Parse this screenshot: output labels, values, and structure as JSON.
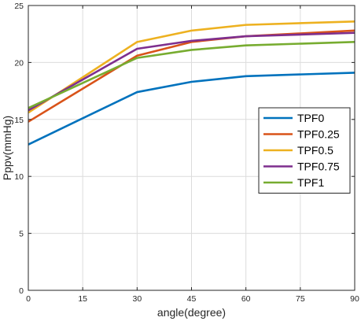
{
  "chart_data": {
    "type": "line",
    "title": "",
    "xlabel": "angle(degree)",
    "ylabel": "Pppv(mmHg)",
    "xlim": [
      0,
      90
    ],
    "ylim": [
      0,
      25
    ],
    "xticks": [
      0,
      15,
      30,
      45,
      60,
      75,
      90
    ],
    "yticks": [
      0,
      5,
      10,
      15,
      20,
      25
    ],
    "grid": true,
    "legend_position": "center-right",
    "x": [
      0,
      30,
      45,
      60,
      90
    ],
    "series": [
      {
        "name": "TPF0",
        "color": "#0072BD",
        "values": [
          12.8,
          17.4,
          18.3,
          18.8,
          19.1
        ]
      },
      {
        "name": "TPF0.25",
        "color": "#D95319",
        "values": [
          14.8,
          20.6,
          21.8,
          22.3,
          22.8
        ]
      },
      {
        "name": "TPF0.5",
        "color": "#EDB120",
        "values": [
          15.6,
          21.8,
          22.8,
          23.3,
          23.6
        ]
      },
      {
        "name": "TPF0.75",
        "color": "#7E2F8E",
        "values": [
          15.8,
          21.2,
          21.9,
          22.3,
          22.6
        ]
      },
      {
        "name": "TPF1",
        "color": "#77AC30",
        "values": [
          16.0,
          20.4,
          21.1,
          21.5,
          21.8
        ]
      }
    ]
  }
}
